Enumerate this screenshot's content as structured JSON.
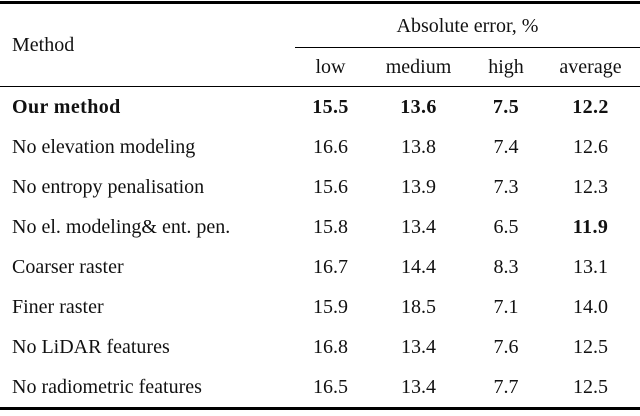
{
  "table": {
    "method_header": "Method",
    "group_header": "Absolute error, %",
    "sub_headers": [
      "low",
      "medium",
      "high",
      "average"
    ],
    "rows": [
      {
        "method": "Our method",
        "values": [
          "15.5",
          "13.6",
          "7.5",
          "12.2"
        ],
        "bold_method": true,
        "bold_values": [
          true,
          true,
          true,
          true
        ]
      },
      {
        "method": "No elevation modeling",
        "values": [
          "16.6",
          "13.8",
          "7.4",
          "12.6"
        ],
        "bold_method": false,
        "bold_values": [
          false,
          false,
          false,
          false
        ]
      },
      {
        "method": "No entropy penalisation",
        "values": [
          "15.6",
          "13.9",
          "7.3",
          "12.3"
        ],
        "bold_method": false,
        "bold_values": [
          false,
          false,
          false,
          false
        ]
      },
      {
        "method": "No el. modeling& ent. pen.",
        "values": [
          "15.8",
          "13.4",
          "6.5",
          "11.9"
        ],
        "bold_method": false,
        "bold_values": [
          false,
          false,
          false,
          true
        ]
      },
      {
        "method": "Coarser raster",
        "values": [
          "16.7",
          "14.4",
          "8.3",
          "13.1"
        ],
        "bold_method": false,
        "bold_values": [
          false,
          false,
          false,
          false
        ]
      },
      {
        "method": "Finer raster",
        "values": [
          "15.9",
          "18.5",
          "7.1",
          "14.0"
        ],
        "bold_method": false,
        "bold_values": [
          false,
          false,
          false,
          false
        ]
      },
      {
        "method": "No LiDAR features",
        "values": [
          "16.8",
          "13.4",
          "7.6",
          "12.5"
        ],
        "bold_method": false,
        "bold_values": [
          false,
          false,
          false,
          false
        ]
      },
      {
        "method": "No radiometric features",
        "values": [
          "16.5",
          "13.4",
          "7.7",
          "12.5"
        ],
        "bold_method": false,
        "bold_values": [
          false,
          false,
          false,
          false
        ]
      }
    ]
  },
  "chart_data": {
    "type": "table",
    "title": "Absolute error, %",
    "columns": [
      "Method",
      "low",
      "medium",
      "high",
      "average"
    ],
    "rows": [
      [
        "Our method",
        15.5,
        13.6,
        7.5,
        12.2
      ],
      [
        "No elevation modeling",
        16.6,
        13.8,
        7.4,
        12.6
      ],
      [
        "No entropy penalisation",
        15.6,
        13.9,
        7.3,
        12.3
      ],
      [
        "No el. modeling& ent. pen.",
        15.8,
        13.4,
        6.5,
        11.9
      ],
      [
        "Coarser raster",
        16.7,
        14.4,
        8.3,
        13.1
      ],
      [
        "Finer raster",
        15.9,
        18.5,
        7.1,
        14.0
      ],
      [
        "No LiDAR features",
        16.8,
        13.4,
        7.6,
        12.5
      ],
      [
        "No radiometric features",
        16.5,
        13.4,
        7.7,
        12.5
      ]
    ],
    "notes": "Bold marks emphasized (best) values: entire 'Our method' row and 11.9 average of 'No el. modeling& ent. pen.'"
  }
}
